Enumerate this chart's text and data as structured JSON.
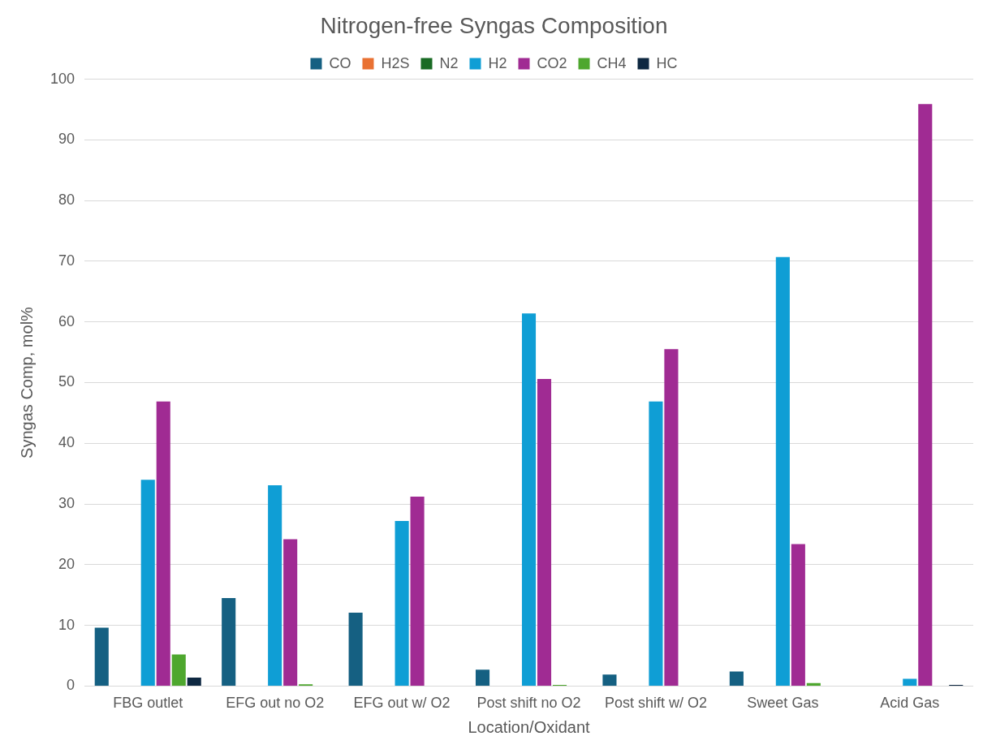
{
  "chart_data": {
    "type": "bar",
    "title": "Nitrogen-free Syngas Composition",
    "xlabel": "Location/Oxidant",
    "ylabel": "Syngas Comp, mol%",
    "categories": [
      "FBG outlet",
      "EFG out no O2",
      "EFG out w/ O2",
      "Post shift no O2",
      "Post shift w/ O2",
      "Sweet Gas",
      "Acid Gas"
    ],
    "series": [
      {
        "name": "CO",
        "color": "#156082",
        "values": [
          9.6,
          14.5,
          12.1,
          2.7,
          1.9,
          2.4,
          0
        ]
      },
      {
        "name": "H2S",
        "color": "#e97132",
        "values": [
          0,
          0,
          0,
          0,
          0,
          0,
          0
        ]
      },
      {
        "name": "N2",
        "color": "#196b24",
        "values": [
          0,
          0,
          0,
          0,
          0,
          0,
          0
        ]
      },
      {
        "name": "H2",
        "color": "#0f9ed5",
        "values": [
          34,
          33.1,
          27.2,
          61.4,
          46.9,
          70.7,
          1.2
        ]
      },
      {
        "name": "CO2",
        "color": "#a02b93",
        "values": [
          46.9,
          24.2,
          31.2,
          50.6,
          55.5,
          23.4,
          95.9
        ]
      },
      {
        "name": "CH4",
        "color": "#4ea72e",
        "values": [
          5.2,
          0.3,
          0,
          0.2,
          0,
          0.5,
          0
        ]
      },
      {
        "name": "HC",
        "color": "#0e2841",
        "values": [
          1.4,
          0,
          0,
          0,
          0,
          0,
          0.2
        ]
      }
    ],
    "ylim": [
      0,
      100
    ],
    "yticks": [
      0,
      10,
      20,
      30,
      40,
      50,
      60,
      70,
      80,
      90,
      100
    ],
    "grid": "y",
    "legend": "top"
  }
}
